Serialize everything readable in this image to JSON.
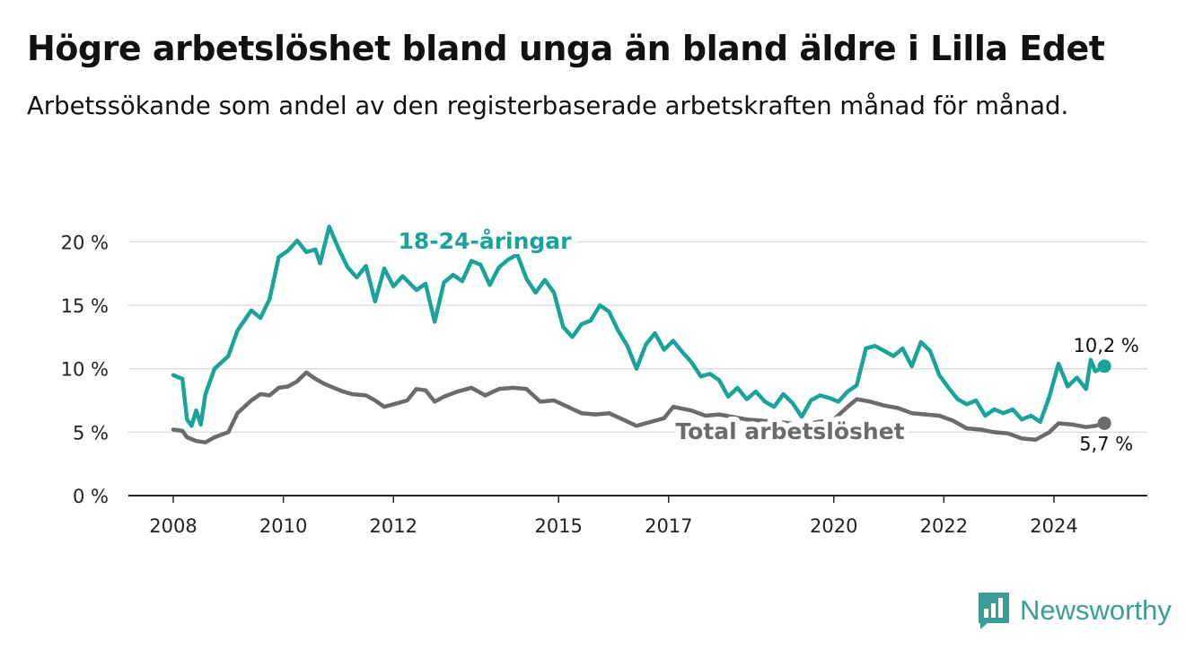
{
  "header": {
    "title": "Högre arbetslöshet bland unga än bland äldre i Lilla Edet",
    "subtitle": "Arbetssökande som andel av den registerbaserade arbetskraften månad för månad."
  },
  "brand": {
    "name": "Newsworthy",
    "icon": "bar-chart-logo-icon",
    "color": "#3a9e97"
  },
  "chart_data": {
    "type": "line",
    "xlabel": "",
    "ylabel": "",
    "ylim": [
      0,
      22
    ],
    "xlim": [
      "2007-09",
      "2025-09"
    ],
    "y_ticks": [
      0,
      5,
      10,
      15,
      20
    ],
    "y_tick_labels": [
      "0 %",
      "5 %",
      "10 %",
      "15 %",
      "20 %"
    ],
    "x_ticks": [
      "2008-01",
      "2010-01",
      "2012-01",
      "2015-01",
      "2017-01",
      "2020-01",
      "2022-01",
      "2024-01"
    ],
    "x_tick_labels": [
      "2008",
      "2010",
      "2012",
      "2015",
      "2017",
      "2020",
      "2022",
      "2024"
    ],
    "grid": true,
    "series": [
      {
        "name": "18-24-åringar",
        "color": "#1aa39a",
        "end_label": "10,2 %",
        "points": [
          [
            "2008-01",
            9.5
          ],
          [
            "2008-03",
            9.2
          ],
          [
            "2008-04",
            6.0
          ],
          [
            "2008-05",
            5.5
          ],
          [
            "2008-06",
            6.7
          ],
          [
            "2008-07",
            5.6
          ],
          [
            "2008-08",
            8.0
          ],
          [
            "2008-10",
            10.0
          ],
          [
            "2009-01",
            11.0
          ],
          [
            "2009-03",
            13.0
          ],
          [
            "2009-06",
            14.6
          ],
          [
            "2009-08",
            14.0
          ],
          [
            "2009-10",
            15.5
          ],
          [
            "2009-12",
            18.8
          ],
          [
            "2010-02",
            19.3
          ],
          [
            "2010-04",
            20.1
          ],
          [
            "2010-06",
            19.2
          ],
          [
            "2010-08",
            19.4
          ],
          [
            "2010-09",
            18.3
          ],
          [
            "2010-11",
            21.2
          ],
          [
            "2011-01",
            19.5
          ],
          [
            "2011-03",
            18.0
          ],
          [
            "2011-05",
            17.2
          ],
          [
            "2011-07",
            18.1
          ],
          [
            "2011-09",
            15.3
          ],
          [
            "2011-11",
            17.9
          ],
          [
            "2012-01",
            16.5
          ],
          [
            "2012-03",
            17.3
          ],
          [
            "2012-06",
            16.2
          ],
          [
            "2012-08",
            16.7
          ],
          [
            "2012-10",
            13.7
          ],
          [
            "2012-12",
            16.8
          ],
          [
            "2013-02",
            17.4
          ],
          [
            "2013-04",
            16.9
          ],
          [
            "2013-06",
            18.5
          ],
          [
            "2013-08",
            18.2
          ],
          [
            "2013-10",
            16.6
          ],
          [
            "2013-12",
            18.0
          ],
          [
            "2014-02",
            18.6
          ],
          [
            "2014-04",
            19.0
          ],
          [
            "2014-06",
            17.1
          ],
          [
            "2014-08",
            16.0
          ],
          [
            "2014-10",
            17.0
          ],
          [
            "2014-12",
            16.0
          ],
          [
            "2015-02",
            13.3
          ],
          [
            "2015-04",
            12.5
          ],
          [
            "2015-06",
            13.5
          ],
          [
            "2015-08",
            13.8
          ],
          [
            "2015-10",
            15.0
          ],
          [
            "2015-12",
            14.5
          ],
          [
            "2016-02",
            13.0
          ],
          [
            "2016-04",
            11.8
          ],
          [
            "2016-06",
            10.0
          ],
          [
            "2016-08",
            11.9
          ],
          [
            "2016-10",
            12.8
          ],
          [
            "2016-12",
            11.5
          ],
          [
            "2017-02",
            12.2
          ],
          [
            "2017-04",
            11.3
          ],
          [
            "2017-06",
            10.5
          ],
          [
            "2017-08",
            9.4
          ],
          [
            "2017-10",
            9.6
          ],
          [
            "2017-12",
            9.1
          ],
          [
            "2018-02",
            7.8
          ],
          [
            "2018-04",
            8.5
          ],
          [
            "2018-06",
            7.6
          ],
          [
            "2018-08",
            8.2
          ],
          [
            "2018-10",
            7.4
          ],
          [
            "2018-12",
            7.0
          ],
          [
            "2019-02",
            8.0
          ],
          [
            "2019-04",
            7.3
          ],
          [
            "2019-06",
            6.2
          ],
          [
            "2019-08",
            7.5
          ],
          [
            "2019-10",
            7.9
          ],
          [
            "2019-12",
            7.7
          ],
          [
            "2020-02",
            7.4
          ],
          [
            "2020-04",
            8.2
          ],
          [
            "2020-06",
            8.7
          ],
          [
            "2020-08",
            11.6
          ],
          [
            "2020-10",
            11.8
          ],
          [
            "2020-12",
            11.4
          ],
          [
            "2021-02",
            11.0
          ],
          [
            "2021-04",
            11.6
          ],
          [
            "2021-06",
            10.2
          ],
          [
            "2021-08",
            12.1
          ],
          [
            "2021-10",
            11.4
          ],
          [
            "2021-12",
            9.5
          ],
          [
            "2022-02",
            8.5
          ],
          [
            "2022-04",
            7.6
          ],
          [
            "2022-06",
            7.2
          ],
          [
            "2022-08",
            7.5
          ],
          [
            "2022-10",
            6.3
          ],
          [
            "2022-12",
            6.8
          ],
          [
            "2023-02",
            6.5
          ],
          [
            "2023-04",
            6.8
          ],
          [
            "2023-06",
            6.0
          ],
          [
            "2023-08",
            6.3
          ],
          [
            "2023-10",
            5.8
          ],
          [
            "2023-12",
            7.8
          ],
          [
            "2024-02",
            10.4
          ],
          [
            "2024-04",
            8.6
          ],
          [
            "2024-06",
            9.3
          ],
          [
            "2024-08",
            8.4
          ],
          [
            "2024-09",
            10.7
          ],
          [
            "2024-10",
            9.8
          ],
          [
            "2024-12",
            10.2
          ]
        ]
      },
      {
        "name": "Total arbetslöshet",
        "color": "#6b6a6e",
        "end_label": "5,7 %",
        "points": [
          [
            "2008-01",
            5.2
          ],
          [
            "2008-03",
            5.1
          ],
          [
            "2008-04",
            4.6
          ],
          [
            "2008-06",
            4.3
          ],
          [
            "2008-08",
            4.2
          ],
          [
            "2008-10",
            4.6
          ],
          [
            "2009-01",
            5.0
          ],
          [
            "2009-03",
            6.5
          ],
          [
            "2009-06",
            7.5
          ],
          [
            "2009-08",
            8.0
          ],
          [
            "2009-10",
            7.9
          ],
          [
            "2009-12",
            8.5
          ],
          [
            "2010-02",
            8.6
          ],
          [
            "2010-04",
            9.0
          ],
          [
            "2010-06",
            9.7
          ],
          [
            "2010-08",
            9.2
          ],
          [
            "2010-10",
            8.8
          ],
          [
            "2010-12",
            8.5
          ],
          [
            "2011-02",
            8.2
          ],
          [
            "2011-04",
            8.0
          ],
          [
            "2011-07",
            7.9
          ],
          [
            "2011-09",
            7.5
          ],
          [
            "2011-11",
            7.0
          ],
          [
            "2012-01",
            7.2
          ],
          [
            "2012-04",
            7.5
          ],
          [
            "2012-06",
            8.4
          ],
          [
            "2012-08",
            8.3
          ],
          [
            "2012-10",
            7.4
          ],
          [
            "2012-12",
            7.8
          ],
          [
            "2013-03",
            8.2
          ],
          [
            "2013-06",
            8.5
          ],
          [
            "2013-09",
            7.9
          ],
          [
            "2013-12",
            8.4
          ],
          [
            "2014-03",
            8.5
          ],
          [
            "2014-06",
            8.4
          ],
          [
            "2014-09",
            7.4
          ],
          [
            "2014-12",
            7.5
          ],
          [
            "2015-03",
            7.0
          ],
          [
            "2015-06",
            6.5
          ],
          [
            "2015-09",
            6.4
          ],
          [
            "2015-12",
            6.5
          ],
          [
            "2016-03",
            6.0
          ],
          [
            "2016-06",
            5.5
          ],
          [
            "2016-09",
            5.8
          ],
          [
            "2016-12",
            6.1
          ],
          [
            "2017-02",
            7.0
          ],
          [
            "2017-06",
            6.7
          ],
          [
            "2017-09",
            6.3
          ],
          [
            "2017-12",
            6.4
          ],
          [
            "2018-06",
            6.0
          ],
          [
            "2019-01",
            5.8
          ],
          [
            "2019-06",
            5.6
          ],
          [
            "2020-01",
            6.0
          ],
          [
            "2020-04",
            7.0
          ],
          [
            "2020-06",
            7.6
          ],
          [
            "2020-09",
            7.4
          ],
          [
            "2020-12",
            7.1
          ],
          [
            "2021-03",
            6.9
          ],
          [
            "2021-06",
            6.5
          ],
          [
            "2021-09",
            6.4
          ],
          [
            "2021-12",
            6.3
          ],
          [
            "2022-03",
            5.9
          ],
          [
            "2022-06",
            5.3
          ],
          [
            "2022-09",
            5.2
          ],
          [
            "2022-12",
            5.0
          ],
          [
            "2023-03",
            4.9
          ],
          [
            "2023-06",
            4.5
          ],
          [
            "2023-09",
            4.4
          ],
          [
            "2023-12",
            5.0
          ],
          [
            "2024-02",
            5.7
          ],
          [
            "2024-05",
            5.6
          ],
          [
            "2024-08",
            5.4
          ],
          [
            "2024-10",
            5.5
          ],
          [
            "2024-12",
            5.7
          ]
        ]
      }
    ]
  }
}
